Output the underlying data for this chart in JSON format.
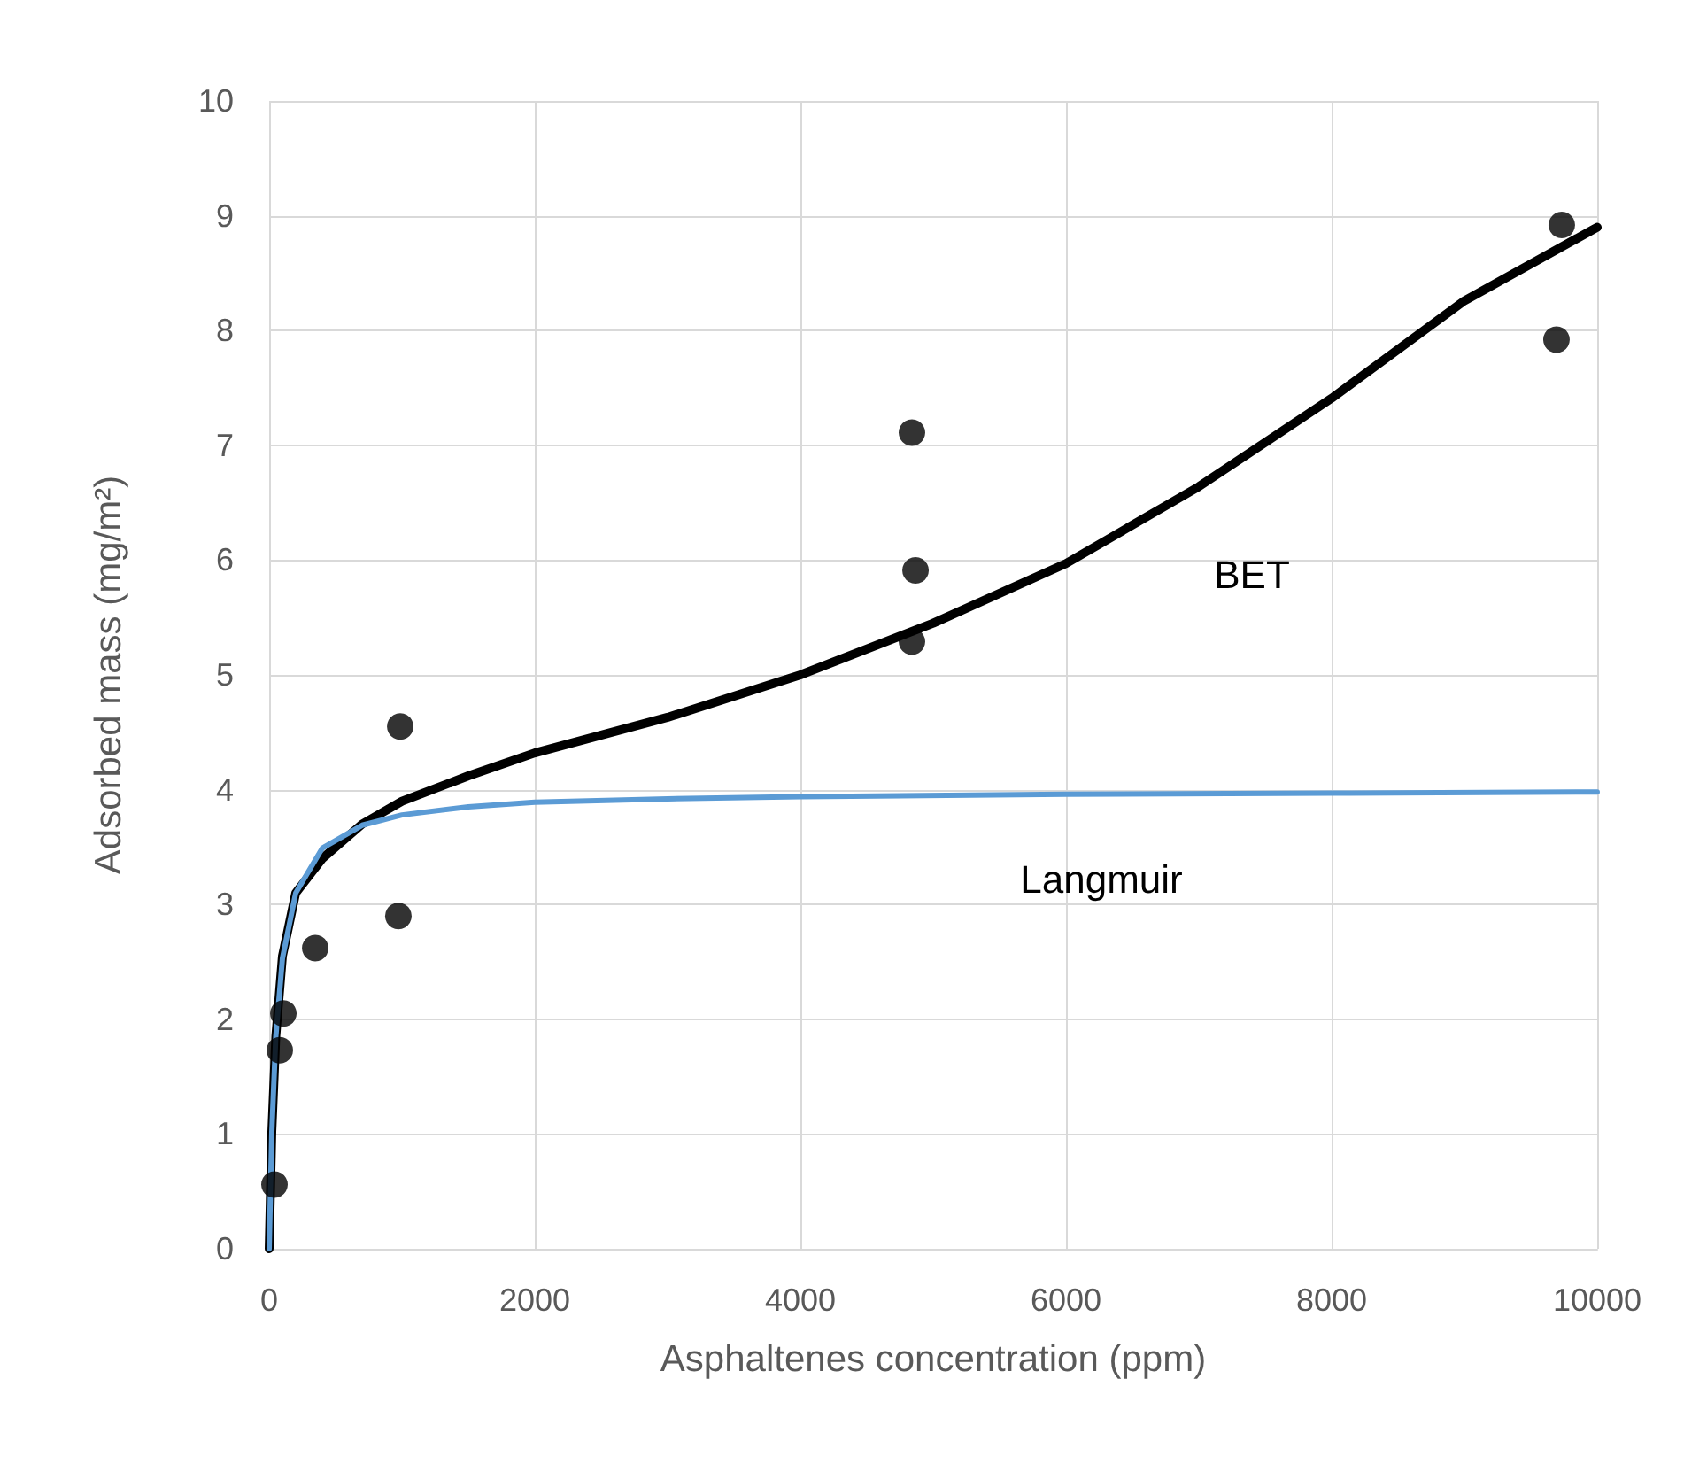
{
  "chart_data": {
    "type": "scatter",
    "xlabel": "Asphaltenes concentration (ppm)",
    "ylabel": "Adsorbed mass (mg/m²)",
    "xlim": [
      0,
      10000
    ],
    "xticks": [
      0,
      2000,
      4000,
      6000,
      8000,
      10000
    ],
    "ylim": [
      0,
      10
    ],
    "yticks": [
      0,
      1,
      2,
      3,
      4,
      5,
      6,
      7,
      8,
      9,
      10
    ],
    "grid": true,
    "series": [
      {
        "color": "#000000",
        "marker": "circle",
        "x": [
          40,
          80,
          107,
          347,
          987,
          973,
          4840,
          4867,
          4840,
          9733,
          9693
        ],
        "values": [
          0.56,
          1.73,
          2.05,
          2.62,
          4.55,
          2.9,
          7.11,
          5.91,
          5.29,
          8.92,
          7.92
        ]
      },
      {
        "type": "line",
        "name": "BET",
        "color": "#000000",
        "marker": "none",
        "line_style": "solid",
        "x": [
          0,
          20,
          50,
          100,
          200,
          400,
          700,
          1000,
          1500,
          2000,
          3000,
          4000,
          5000,
          6000,
          7000,
          8000,
          9000,
          10000
        ],
        "values": [
          0,
          1.02,
          1.85,
          2.55,
          3.1,
          3.4,
          3.7,
          3.9,
          4.12,
          4.32,
          4.63,
          5.0,
          5.45,
          5.97,
          6.64,
          7.41,
          8.26,
          8.9
        ]
      },
      {
        "type": "line",
        "name": "Langmuir",
        "color": "#5b9bd5",
        "marker": "none",
        "line_style": "solid",
        "x": [
          0,
          20,
          50,
          100,
          200,
          400,
          700,
          1000,
          1500,
          2000,
          3000,
          4000,
          6000,
          8000,
          10000
        ],
        "values": [
          0,
          1.02,
          1.85,
          2.53,
          3.1,
          3.49,
          3.69,
          3.78,
          3.85,
          3.89,
          3.92,
          3.94,
          3.96,
          3.97,
          3.98
        ]
      }
    ]
  }
}
